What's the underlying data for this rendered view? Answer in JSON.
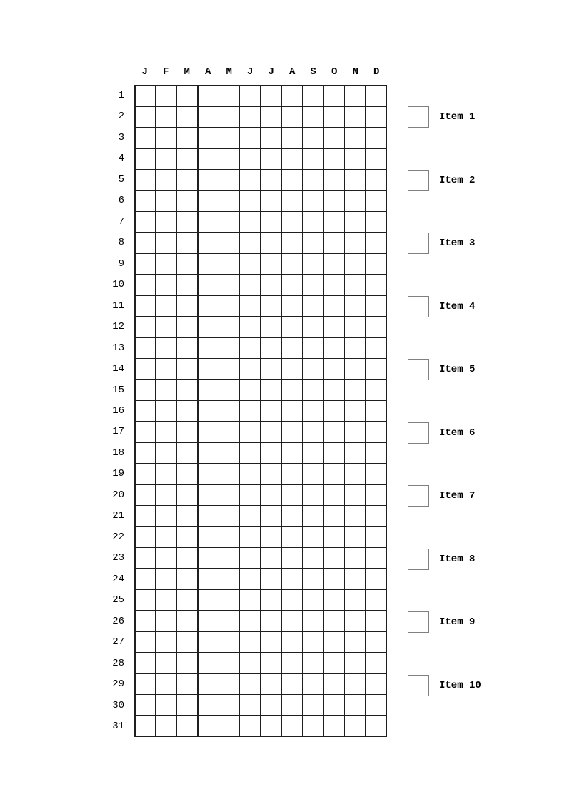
{
  "tracker": {
    "months": [
      "J",
      "F",
      "M",
      "A",
      "M",
      "J",
      "J",
      "A",
      "S",
      "O",
      "N",
      "D"
    ],
    "days": [
      1,
      2,
      3,
      4,
      5,
      6,
      7,
      8,
      9,
      10,
      11,
      12,
      13,
      14,
      15,
      16,
      17,
      18,
      19,
      20,
      21,
      22,
      23,
      24,
      25,
      26,
      27,
      28,
      29,
      30,
      31
    ],
    "cell_state_default": "empty"
  },
  "legend": {
    "items": [
      {
        "label": "Item 1",
        "checked": false
      },
      {
        "label": "Item 2",
        "checked": false
      },
      {
        "label": "Item 3",
        "checked": false
      },
      {
        "label": "Item 4",
        "checked": false
      },
      {
        "label": "Item 5",
        "checked": false
      },
      {
        "label": "Item 6",
        "checked": false
      },
      {
        "label": "Item 7",
        "checked": false
      },
      {
        "label": "Item 8",
        "checked": false
      },
      {
        "label": "Item 9",
        "checked": false
      },
      {
        "label": "Item 10",
        "checked": false
      }
    ]
  },
  "colors": {
    "background": "#ffffff",
    "grid_line": "#1f1f1f",
    "checkbox_border": "#808080",
    "text": "#000000"
  }
}
